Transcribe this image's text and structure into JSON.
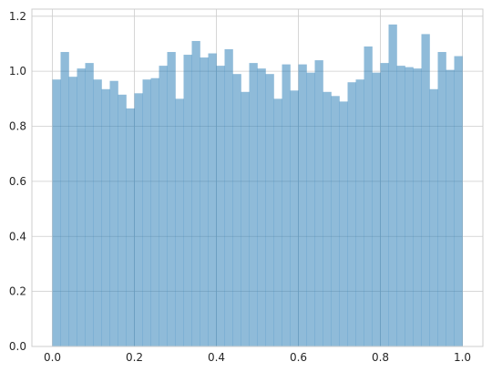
{
  "chart_data": {
    "type": "bar",
    "title": "",
    "xlabel": "",
    "ylabel": "",
    "xlim": [
      -0.05,
      1.05
    ],
    "ylim": [
      0,
      1.2258
    ],
    "grid": true,
    "bins": {
      "start": 0.0,
      "width": 0.02,
      "values": [
        0.97,
        1.07,
        0.98,
        1.01,
        1.03,
        0.97,
        0.935,
        0.965,
        0.915,
        0.865,
        0.92,
        0.97,
        0.975,
        1.02,
        1.07,
        0.9,
        1.06,
        1.11,
        1.05,
        1.065,
        1.02,
        1.08,
        0.99,
        0.925,
        1.03,
        1.01,
        0.99,
        0.9,
        1.025,
        0.93,
        1.025,
        0.995,
        1.04,
        0.925,
        0.91,
        0.89,
        0.96,
        0.97,
        1.09,
        0.995,
        1.03,
        1.17,
        1.02,
        1.015,
        1.01,
        1.135,
        0.935,
        1.07,
        1.005,
        1.055
      ]
    },
    "x_ticks": [
      0.0,
      0.2,
      0.4,
      0.6,
      0.8,
      1.0
    ],
    "x_tick_labels": [
      "0.0",
      "0.2",
      "0.4",
      "0.6",
      "0.8",
      "1.0"
    ],
    "y_ticks": [
      0.0,
      0.2,
      0.4,
      0.6,
      0.8,
      1.0,
      1.2
    ],
    "y_tick_labels": [
      "0.0",
      "0.2",
      "0.4",
      "0.6",
      "0.8",
      "1.0",
      "1.2"
    ],
    "colors": {
      "bar": "#1f77b4",
      "grid": "#cccccc",
      "text": "#262626"
    }
  }
}
